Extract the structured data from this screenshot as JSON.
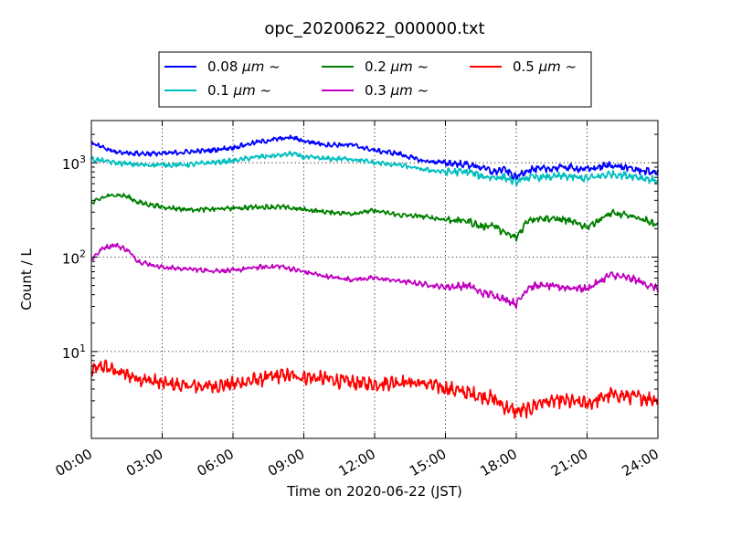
{
  "chart_data": {
    "type": "line",
    "title": "opc_20200622_000000.txt",
    "xlabel": "Time on 2020-06-22 (JST)",
    "ylabel": "Count / L",
    "yscale": "log",
    "xlim": [
      0,
      24
    ],
    "ylim": [
      1.2,
      2800
    ],
    "grid": true,
    "legend_position": "top-center",
    "x_ticks": [
      {
        "value": 0,
        "label": "00:00"
      },
      {
        "value": 3,
        "label": "03:00"
      },
      {
        "value": 6,
        "label": "06:00"
      },
      {
        "value": 9,
        "label": "09:00"
      },
      {
        "value": 12,
        "label": "12:00"
      },
      {
        "value": 15,
        "label": "15:00"
      },
      {
        "value": 18,
        "label": "18:00"
      },
      {
        "value": 21,
        "label": "21:00"
      },
      {
        "value": 24,
        "label": "24:00"
      }
    ],
    "y_ticks": [
      {
        "value": 10,
        "base": "10",
        "exp": "1"
      },
      {
        "value": 100,
        "base": "10",
        "exp": "2"
      },
      {
        "value": 1000,
        "base": "10",
        "exp": "3"
      }
    ],
    "series": [
      {
        "name_prefix": "0.08 ",
        "name_unit": "μm",
        "name_suffix": " ~",
        "color": "#0000ff",
        "x": [
          0,
          1,
          2,
          3,
          4,
          5,
          6,
          7,
          8,
          8.5,
          9,
          10,
          11,
          12,
          13,
          14,
          15,
          16,
          16.5,
          17,
          17.5,
          18,
          18.5,
          19,
          20,
          21,
          22,
          23,
          24
        ],
        "y": [
          1600,
          1300,
          1250,
          1250,
          1300,
          1350,
          1450,
          1650,
          1800,
          1850,
          1700,
          1550,
          1550,
          1350,
          1250,
          1050,
          1000,
          950,
          900,
          800,
          850,
          700,
          850,
          850,
          900,
          850,
          950,
          850,
          780
        ]
      },
      {
        "name_prefix": "0.1 ",
        "name_unit": "μm",
        "name_suffix": " ~",
        "color": "#00bfbf",
        "x": [
          0,
          1,
          2,
          3,
          4,
          5,
          6,
          7,
          8,
          8.5,
          9,
          10,
          11,
          12,
          13,
          14,
          15,
          16,
          16.5,
          17,
          17.5,
          18,
          18.5,
          19,
          20,
          21,
          22,
          23,
          24
        ],
        "y": [
          1100,
          1000,
          950,
          950,
          950,
          1000,
          1050,
          1150,
          1200,
          1250,
          1150,
          1100,
          1100,
          1000,
          950,
          850,
          800,
          800,
          720,
          700,
          700,
          620,
          700,
          700,
          720,
          680,
          760,
          720,
          640
        ]
      },
      {
        "name_prefix": "0.2 ",
        "name_unit": "μm",
        "name_suffix": " ~",
        "color": "#008000",
        "x": [
          0,
          0.5,
          1,
          1.5,
          2,
          3,
          4,
          5,
          6,
          7,
          8,
          9,
          10,
          11,
          12,
          13,
          14,
          15,
          16,
          16.5,
          17,
          17.5,
          18,
          18.5,
          19,
          20,
          21,
          22,
          23,
          24
        ],
        "y": [
          370,
          430,
          460,
          440,
          380,
          340,
          320,
          320,
          330,
          340,
          340,
          320,
          300,
          290,
          310,
          280,
          270,
          250,
          240,
          210,
          220,
          180,
          160,
          250,
          260,
          250,
          210,
          290,
          270,
          220
        ]
      },
      {
        "name_prefix": "0.3 ",
        "name_unit": "μm",
        "name_suffix": " ~",
        "color": "#bf00bf",
        "x": [
          0,
          0.5,
          1,
          1.5,
          2,
          3,
          4,
          5,
          6,
          7,
          8,
          9,
          10,
          11,
          12,
          13,
          14,
          15,
          16,
          16.5,
          17,
          17.5,
          18,
          18.5,
          19,
          20,
          21,
          22,
          23,
          24
        ],
        "y": [
          95,
          125,
          135,
          120,
          90,
          78,
          75,
          72,
          72,
          78,
          80,
          70,
          62,
          58,
          60,
          56,
          52,
          48,
          50,
          42,
          40,
          36,
          32,
          48,
          50,
          48,
          46,
          65,
          58,
          46
        ]
      },
      {
        "name_prefix": "0.5 ",
        "name_unit": "μm",
        "name_suffix": " ~",
        "color": "#ff0000",
        "x": [
          0,
          0.5,
          1,
          2,
          3,
          4,
          5,
          6,
          7,
          8,
          9,
          10,
          11,
          12,
          13,
          14,
          15,
          16,
          17,
          17.5,
          18,
          18.5,
          19,
          20,
          21,
          22,
          23,
          24
        ],
        "y": [
          6.2,
          7,
          6.2,
          5.2,
          4.6,
          4.3,
          4.3,
          4.5,
          5,
          5.6,
          5.4,
          5.1,
          4.7,
          4.5,
          4.8,
          4.6,
          4.1,
          3.6,
          3.2,
          2.6,
          2.3,
          2.4,
          2.9,
          3,
          2.8,
          3.5,
          3.3,
          3.1
        ]
      }
    ]
  }
}
